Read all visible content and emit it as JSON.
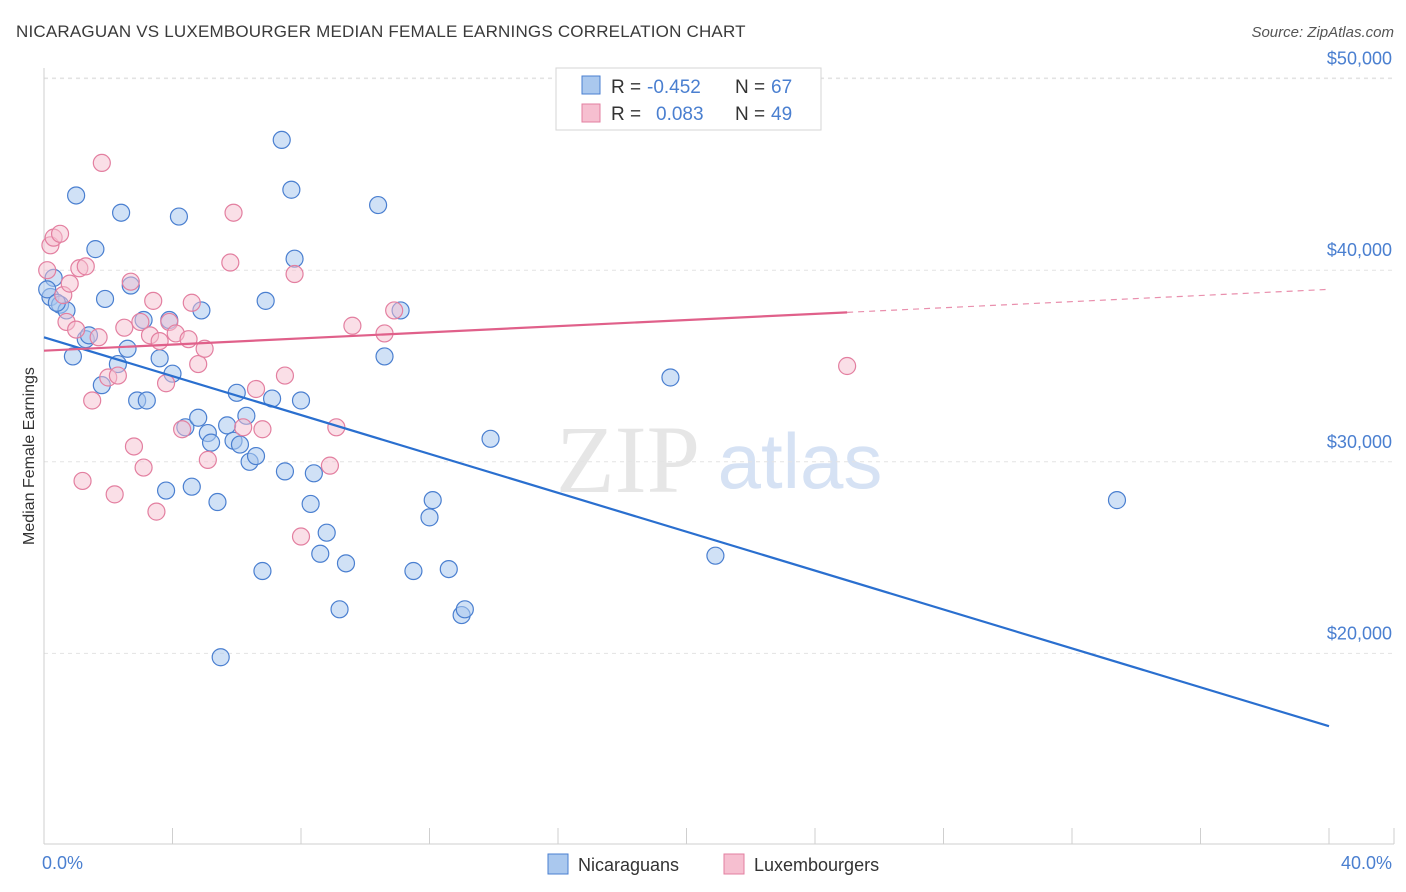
{
  "title": "NICARAGUAN VS LUXEMBOURGER MEDIAN FEMALE EARNINGS CORRELATION CHART",
  "source": "Source: ZipAtlas.com",
  "watermark": {
    "zip": "ZIP",
    "atlas": "atlas"
  },
  "colors": {
    "blue": "#4a7fd0",
    "blue_fill": "#aac8ee",
    "blue_line": "#2a6fcf",
    "pink": "#e37fa0",
    "pink_fill": "#f6bfd0",
    "pink_line": "#e0608a",
    "grid": "#e3e3e3"
  },
  "legend": {
    "rows": [
      {
        "r_label": "R =",
        "r_value": "-0.452",
        "n_label": "N =",
        "n_value": "67"
      },
      {
        "r_label": "R =",
        "r_value": "0.083",
        "n_label": "N =",
        "n_value": "49"
      }
    ]
  },
  "chart_data": {
    "type": "scatter",
    "title": "NICARAGUAN VS LUXEMBOURGER MEDIAN FEMALE EARNINGS CORRELATION CHART",
    "xlabel": "",
    "ylabel": "Median Female Earnings",
    "xlim": [
      0,
      40
    ],
    "ylim": [
      10000,
      52000
    ],
    "x_tick_labels": [
      "0.0%",
      "40.0%"
    ],
    "y_ticks": [
      20000,
      30000,
      40000,
      50000
    ],
    "y_tick_labels": [
      "$20,000",
      "$30,000",
      "$40,000",
      "$50,000"
    ],
    "grid": true,
    "legend_position": "top-center",
    "series": [
      {
        "name": "Nicaraguans",
        "color": "#4a7fd0",
        "r": -0.452,
        "n": 67,
        "trend": {
          "x": [
            0,
            40
          ],
          "y": [
            36500,
            16200
          ],
          "dashed_from": null
        },
        "points": [
          [
            0.2,
            38600
          ],
          [
            0.3,
            39600
          ],
          [
            0.5,
            38200
          ],
          [
            0.7,
            37900
          ],
          [
            0.9,
            35500
          ],
          [
            1.0,
            43900
          ],
          [
            1.3,
            36400
          ],
          [
            1.4,
            36600
          ],
          [
            1.6,
            41100
          ],
          [
            1.8,
            34000
          ],
          [
            1.9,
            38500
          ],
          [
            2.3,
            35100
          ],
          [
            2.4,
            43000
          ],
          [
            2.6,
            35900
          ],
          [
            2.7,
            39200
          ],
          [
            2.9,
            33200
          ],
          [
            3.1,
            37400
          ],
          [
            3.2,
            33200
          ],
          [
            3.6,
            35400
          ],
          [
            3.8,
            28500
          ],
          [
            3.9,
            37400
          ],
          [
            4.0,
            34600
          ],
          [
            4.2,
            42800
          ],
          [
            4.4,
            31800
          ],
          [
            4.6,
            28700
          ],
          [
            4.8,
            32300
          ],
          [
            4.9,
            37900
          ],
          [
            5.1,
            31500
          ],
          [
            5.2,
            31000
          ],
          [
            5.4,
            27900
          ],
          [
            5.5,
            19800
          ],
          [
            5.7,
            31900
          ],
          [
            5.9,
            31100
          ],
          [
            6.0,
            33600
          ],
          [
            6.1,
            30900
          ],
          [
            6.3,
            32400
          ],
          [
            6.4,
            30000
          ],
          [
            6.6,
            30300
          ],
          [
            6.8,
            24300
          ],
          [
            6.9,
            38400
          ],
          [
            7.1,
            33300
          ],
          [
            7.4,
            46800
          ],
          [
            7.5,
            29500
          ],
          [
            7.7,
            44200
          ],
          [
            7.8,
            40600
          ],
          [
            8.0,
            33200
          ],
          [
            8.3,
            27800
          ],
          [
            8.4,
            29400
          ],
          [
            8.6,
            25200
          ],
          [
            8.8,
            26300
          ],
          [
            9.2,
            22300
          ],
          [
            9.4,
            24700
          ],
          [
            10.4,
            43400
          ],
          [
            10.6,
            35500
          ],
          [
            11.1,
            37900
          ],
          [
            11.5,
            24300
          ],
          [
            12.0,
            27100
          ],
          [
            12.1,
            28000
          ],
          [
            12.6,
            24400
          ],
          [
            13.0,
            22000
          ],
          [
            13.1,
            22300
          ],
          [
            13.9,
            31200
          ],
          [
            19.5,
            34400
          ],
          [
            20.9,
            25100
          ],
          [
            33.4,
            28000
          ],
          [
            0.1,
            39000
          ],
          [
            0.4,
            38300
          ]
        ]
      },
      {
        "name": "Luxembourgers",
        "color": "#e37fa0",
        "r": 0.083,
        "n": 49,
        "trend": {
          "x": [
            0,
            25,
            40
          ],
          "y": [
            35800,
            37800,
            39000
          ],
          "dashed_from": 25
        },
        "points": [
          [
            0.1,
            40000
          ],
          [
            0.2,
            41300
          ],
          [
            0.3,
            41700
          ],
          [
            0.5,
            41900
          ],
          [
            0.6,
            38700
          ],
          [
            0.7,
            37300
          ],
          [
            0.8,
            39300
          ],
          [
            1.0,
            36900
          ],
          [
            1.1,
            40100
          ],
          [
            1.2,
            29000
          ],
          [
            1.3,
            40200
          ],
          [
            1.5,
            33200
          ],
          [
            1.7,
            36500
          ],
          [
            1.8,
            45600
          ],
          [
            2.0,
            34400
          ],
          [
            2.2,
            28300
          ],
          [
            2.3,
            34500
          ],
          [
            2.5,
            37000
          ],
          [
            2.7,
            39400
          ],
          [
            2.8,
            30800
          ],
          [
            3.0,
            37300
          ],
          [
            3.1,
            29700
          ],
          [
            3.3,
            36600
          ],
          [
            3.4,
            38400
          ],
          [
            3.5,
            27400
          ],
          [
            3.8,
            34100
          ],
          [
            3.9,
            37300
          ],
          [
            4.1,
            36700
          ],
          [
            4.3,
            31700
          ],
          [
            4.5,
            36400
          ],
          [
            4.6,
            38300
          ],
          [
            4.8,
            35100
          ],
          [
            5.0,
            35900
          ],
          [
            5.1,
            30100
          ],
          [
            5.8,
            40400
          ],
          [
            5.9,
            43000
          ],
          [
            6.2,
            31800
          ],
          [
            6.6,
            33800
          ],
          [
            6.8,
            31700
          ],
          [
            7.5,
            34500
          ],
          [
            7.8,
            39800
          ],
          [
            8.0,
            26100
          ],
          [
            8.9,
            29800
          ],
          [
            9.1,
            31800
          ],
          [
            9.6,
            37100
          ],
          [
            10.6,
            36700
          ],
          [
            10.9,
            37900
          ],
          [
            25.0,
            35000
          ],
          [
            3.6,
            36300
          ]
        ]
      }
    ]
  },
  "bottom_legend": {
    "items": [
      {
        "label": "Nicaraguans"
      },
      {
        "label": "Luxembourgers"
      }
    ]
  }
}
